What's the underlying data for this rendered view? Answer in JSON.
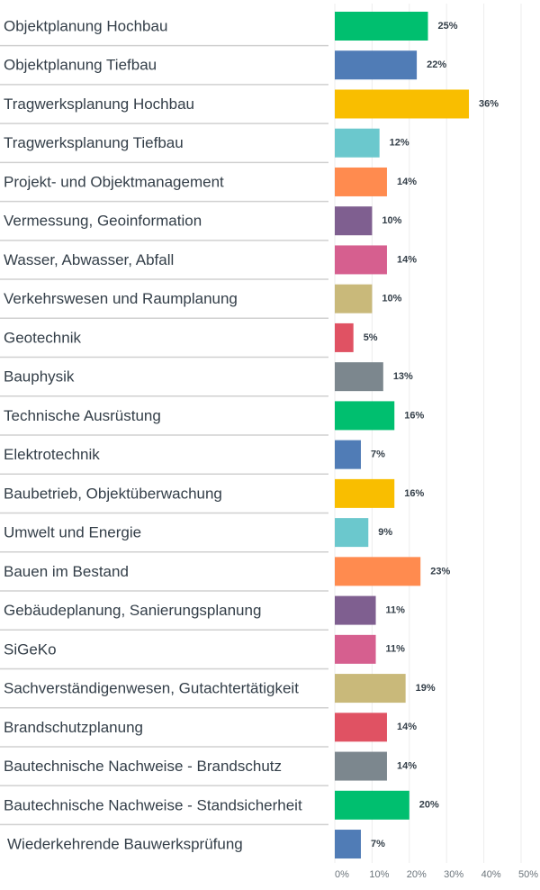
{
  "chart_data": {
    "type": "hbar",
    "categories": [
      "Objektplanung Hochbau",
      "Objektplanung Tiefbau",
      "Tragwerksplanung Hochbau",
      "Tragwerksplanung Tiefbau",
      "Projekt- und Objektmanagement",
      "Vermessung, Geoinformation",
      "Wasser, Abwasser, Abfall",
      "Verkehrswesen und Raumplanung",
      "Geotechnik",
      "Bauphysik",
      "Technische Ausrüstung",
      "Elektrotechnik",
      "Baubetrieb, Objektüberwachung",
      "Umwelt und Energie",
      "Bauen im Bestand",
      "Gebäudeplanung, Sanierungsplanung",
      "SiGeKo",
      "Sachverständigenwesen, Gutachtertätigkeit",
      "Brandschutzplanung",
      "Bautechnische Nachweise - Brandschutz",
      "Bautechnische Nachweise - Standsicherheit",
      "Wiederkehrende Bauwerksprüfung"
    ],
    "values": [
      25,
      22,
      36,
      12,
      14,
      10,
      14,
      10,
      5,
      13,
      16,
      7,
      16,
      9,
      23,
      11,
      11,
      19,
      14,
      14,
      20,
      7
    ],
    "value_labels": [
      "25%",
      "22%",
      "36%",
      "12%",
      "14%",
      "10%",
      "14%",
      "10%",
      "5%",
      "13%",
      "16%",
      "7%",
      "16%",
      "9%",
      "23%",
      "11%",
      "11%",
      "19%",
      "14%",
      "14%",
      "20%",
      "7%"
    ],
    "colors": [
      "#00bf6f",
      "#507cb6",
      "#f9be00",
      "#6bc8cd",
      "#ff8b4f",
      "#7f5f90",
      "#d65f8f",
      "#c9b97a",
      "#e05263",
      "#7c878e",
      "#00bf6f",
      "#507cb6",
      "#f9be00",
      "#6bc8cd",
      "#ff8b4f",
      "#7f5f90",
      "#d65f8f",
      "#c9b97a",
      "#e05263",
      "#7c878e",
      "#00bf6f",
      "#507cb6"
    ],
    "xlim": [
      0,
      50
    ],
    "xticks": [
      {
        "value": 0,
        "label": "0%"
      },
      {
        "value": 10,
        "label": "10%"
      },
      {
        "value": 20,
        "label": "20%"
      },
      {
        "value": 30,
        "label": "30%"
      },
      {
        "value": 40,
        "label": "40%"
      },
      {
        "value": 50,
        "label": "50%"
      }
    ],
    "grid": true
  }
}
